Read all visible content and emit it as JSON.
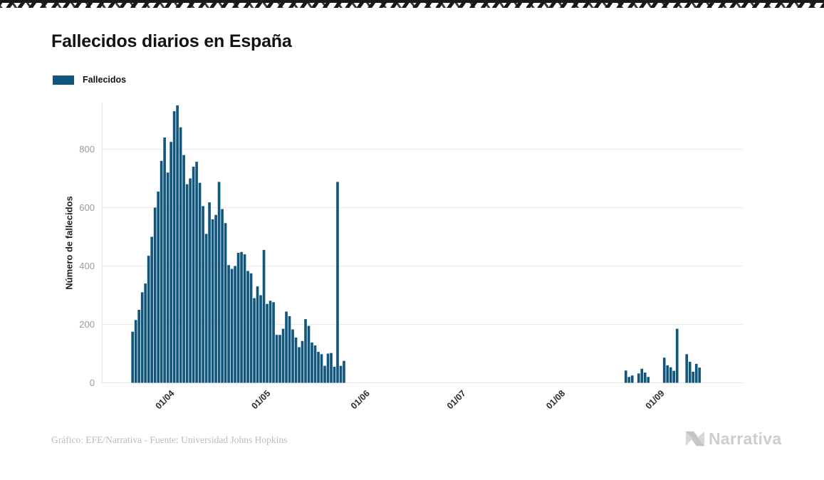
{
  "page": {
    "title": "Fallecidos diarios en España"
  },
  "legend": {
    "label": "Fallecidos"
  },
  "footer": {
    "credit": "Gráfico: EFE/Narrativa - Fuente: Universidad Johns Hopkins",
    "brand_text": "Narrativa"
  },
  "colors": {
    "bar": "#11567c",
    "grid": "#ebebeb",
    "axis_line": "#e3e3e3",
    "y_tick_text": "#9a9a9a",
    "x_tick_text": "#2b2b2b",
    "title_text": "#121212",
    "credit_text": "#bcbcbc",
    "brand_gray": "#cdcdcd",
    "torn_edge": "#191919"
  },
  "chart_data": {
    "type": "bar",
    "title": "Fallecidos diarios en España",
    "series_name": "Fallecidos",
    "xlabel": "",
    "ylabel": "Número de fallecidos",
    "ylim": [
      0,
      956
    ],
    "yticks": [
      0,
      200,
      400,
      600,
      800
    ],
    "grid": true,
    "legend_position": "top-left",
    "x_domain": [
      "2020-03-10",
      "2020-09-25"
    ],
    "month_ticks": [
      {
        "label": "01/04",
        "date": "2020-04-01"
      },
      {
        "label": "01/05",
        "date": "2020-05-01"
      },
      {
        "label": "01/06",
        "date": "2020-06-01"
      },
      {
        "label": "01/07",
        "date": "2020-07-01"
      },
      {
        "label": "01/08",
        "date": "2020-08-01"
      },
      {
        "label": "01/09",
        "date": "2020-09-01"
      }
    ],
    "points": [
      {
        "date": "2020-03-19",
        "value": 175
      },
      {
        "date": "2020-03-20",
        "value": 215
      },
      {
        "date": "2020-03-21",
        "value": 250
      },
      {
        "date": "2020-03-22",
        "value": 310
      },
      {
        "date": "2020-03-23",
        "value": 340
      },
      {
        "date": "2020-03-24",
        "value": 435
      },
      {
        "date": "2020-03-25",
        "value": 500
      },
      {
        "date": "2020-03-26",
        "value": 600
      },
      {
        "date": "2020-03-27",
        "value": 655
      },
      {
        "date": "2020-03-28",
        "value": 760
      },
      {
        "date": "2020-03-29",
        "value": 840
      },
      {
        "date": "2020-03-30",
        "value": 720
      },
      {
        "date": "2020-03-31",
        "value": 825
      },
      {
        "date": "2020-04-01",
        "value": 930
      },
      {
        "date": "2020-04-02",
        "value": 950
      },
      {
        "date": "2020-04-03",
        "value": 875
      },
      {
        "date": "2020-04-04",
        "value": 780
      },
      {
        "date": "2020-04-05",
        "value": 680
      },
      {
        "date": "2020-04-06",
        "value": 700
      },
      {
        "date": "2020-04-07",
        "value": 740
      },
      {
        "date": "2020-04-08",
        "value": 757
      },
      {
        "date": "2020-04-09",
        "value": 685
      },
      {
        "date": "2020-04-10",
        "value": 605
      },
      {
        "date": "2020-04-11",
        "value": 510
      },
      {
        "date": "2020-04-12",
        "value": 618
      },
      {
        "date": "2020-04-13",
        "value": 560
      },
      {
        "date": "2020-04-14",
        "value": 575
      },
      {
        "date": "2020-04-15",
        "value": 688
      },
      {
        "date": "2020-04-16",
        "value": 595
      },
      {
        "date": "2020-04-17",
        "value": 547
      },
      {
        "date": "2020-04-18",
        "value": 403
      },
      {
        "date": "2020-04-19",
        "value": 390
      },
      {
        "date": "2020-04-20",
        "value": 400
      },
      {
        "date": "2020-04-21",
        "value": 445
      },
      {
        "date": "2020-04-22",
        "value": 448
      },
      {
        "date": "2020-04-23",
        "value": 440
      },
      {
        "date": "2020-04-24",
        "value": 383
      },
      {
        "date": "2020-04-25",
        "value": 375
      },
      {
        "date": "2020-04-26",
        "value": 290
      },
      {
        "date": "2020-04-27",
        "value": 330
      },
      {
        "date": "2020-04-28",
        "value": 300
      },
      {
        "date": "2020-04-29",
        "value": 455
      },
      {
        "date": "2020-04-30",
        "value": 270
      },
      {
        "date": "2020-05-01",
        "value": 281
      },
      {
        "date": "2020-05-02",
        "value": 276
      },
      {
        "date": "2020-05-03",
        "value": 164
      },
      {
        "date": "2020-05-04",
        "value": 164
      },
      {
        "date": "2020-05-05",
        "value": 185
      },
      {
        "date": "2020-05-06",
        "value": 244
      },
      {
        "date": "2020-05-07",
        "value": 228
      },
      {
        "date": "2020-05-08",
        "value": 183
      },
      {
        "date": "2020-05-09",
        "value": 155
      },
      {
        "date": "2020-05-10",
        "value": 122
      },
      {
        "date": "2020-05-11",
        "value": 143
      },
      {
        "date": "2020-05-12",
        "value": 218
      },
      {
        "date": "2020-05-13",
        "value": 195
      },
      {
        "date": "2020-05-14",
        "value": 138
      },
      {
        "date": "2020-05-15",
        "value": 128
      },
      {
        "date": "2020-05-16",
        "value": 106
      },
      {
        "date": "2020-05-17",
        "value": 98
      },
      {
        "date": "2020-05-18",
        "value": 58
      },
      {
        "date": "2020-05-19",
        "value": 100
      },
      {
        "date": "2020-05-20",
        "value": 102
      },
      {
        "date": "2020-05-21",
        "value": 55
      },
      {
        "date": "2020-05-22",
        "value": 688
      },
      {
        "date": "2020-05-23",
        "value": 58
      },
      {
        "date": "2020-05-24",
        "value": 75
      },
      {
        "date": "2020-08-20",
        "value": 42
      },
      {
        "date": "2020-08-21",
        "value": 20
      },
      {
        "date": "2020-08-22",
        "value": 25
      },
      {
        "date": "2020-08-24",
        "value": 32
      },
      {
        "date": "2020-08-25",
        "value": 48
      },
      {
        "date": "2020-08-26",
        "value": 35
      },
      {
        "date": "2020-08-27",
        "value": 20
      },
      {
        "date": "2020-09-01",
        "value": 86
      },
      {
        "date": "2020-09-02",
        "value": 60
      },
      {
        "date": "2020-09-03",
        "value": 53
      },
      {
        "date": "2020-09-04",
        "value": 41
      },
      {
        "date": "2020-09-05",
        "value": 185
      },
      {
        "date": "2020-09-08",
        "value": 98
      },
      {
        "date": "2020-09-09",
        "value": 72
      },
      {
        "date": "2020-09-10",
        "value": 38
      },
      {
        "date": "2020-09-11",
        "value": 65
      },
      {
        "date": "2020-09-12",
        "value": 52
      }
    ]
  }
}
